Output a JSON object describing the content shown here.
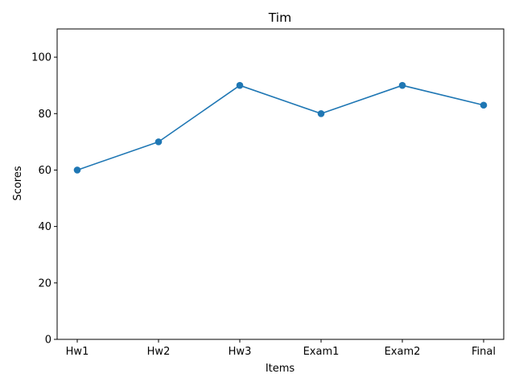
{
  "chart_data": {
    "type": "line",
    "title": "Tim",
    "xlabel": "Items",
    "ylabel": "Scores",
    "categories": [
      "Hw1",
      "Hw2",
      "Hw3",
      "Exam1",
      "Exam2",
      "Final"
    ],
    "series": [
      {
        "values": [
          60,
          70,
          90,
          80,
          90,
          83
        ],
        "color": "#1f77b4",
        "marker": "circle"
      }
    ],
    "ylim": [
      0,
      110
    ],
    "yticks": [
      0,
      20,
      40,
      60,
      80,
      100
    ],
    "grid": false,
    "legend": "none"
  }
}
